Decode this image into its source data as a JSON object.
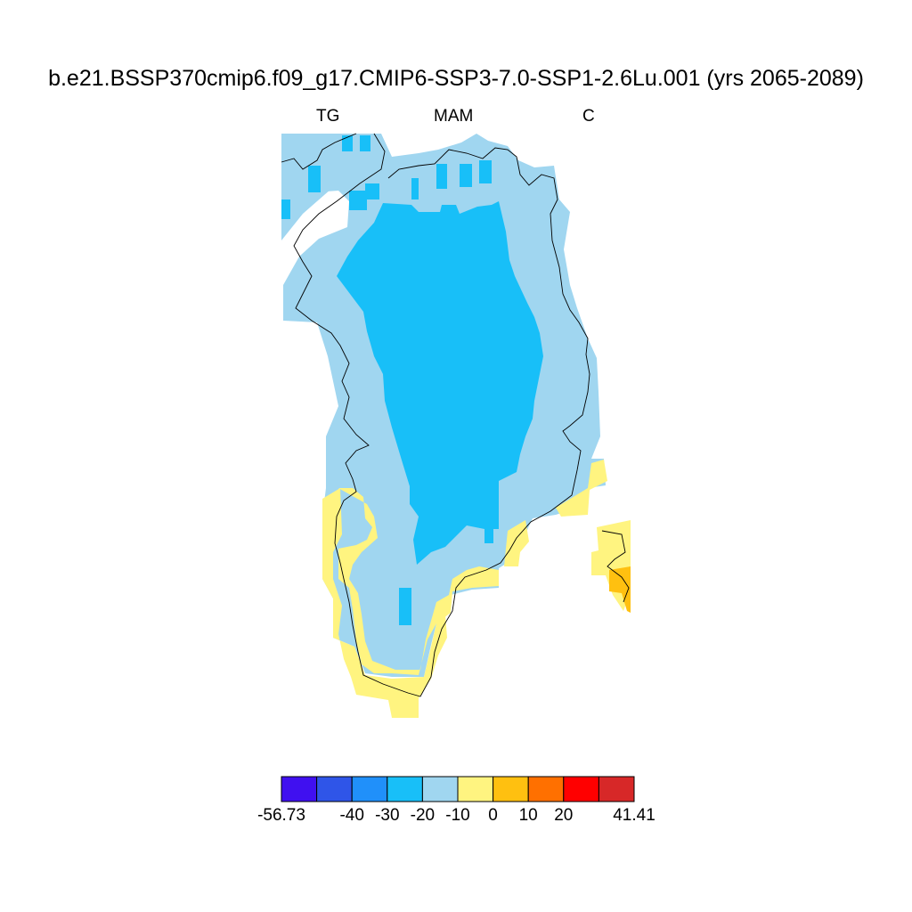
{
  "title": "b.e21.BSSP370cmip6.f09_g17.CMIP6-SSP3-7.0-SSP1-2.6Lu.001 (yrs 2065-2089)",
  "subtitles": {
    "left": "TG",
    "center": "MAM",
    "right": "C"
  },
  "colorbar": {
    "colors": [
      "#4010f0",
      "#2f55e8",
      "#2090fa",
      "#18bff8",
      "#a0d6f0",
      "#fff480",
      "#ffc010",
      "#ff7000",
      "#ff0000",
      "#d72828"
    ],
    "labels": [
      "-56.73",
      "-40",
      "-30",
      "-20",
      "-10",
      "0",
      "10",
      "20",
      "41.41"
    ]
  },
  "map_fill": {
    "outer_band": "#a0d6f0",
    "interior": "#18bff8",
    "south_coast": "#fff480",
    "warm_patch": "#ffc010"
  }
}
